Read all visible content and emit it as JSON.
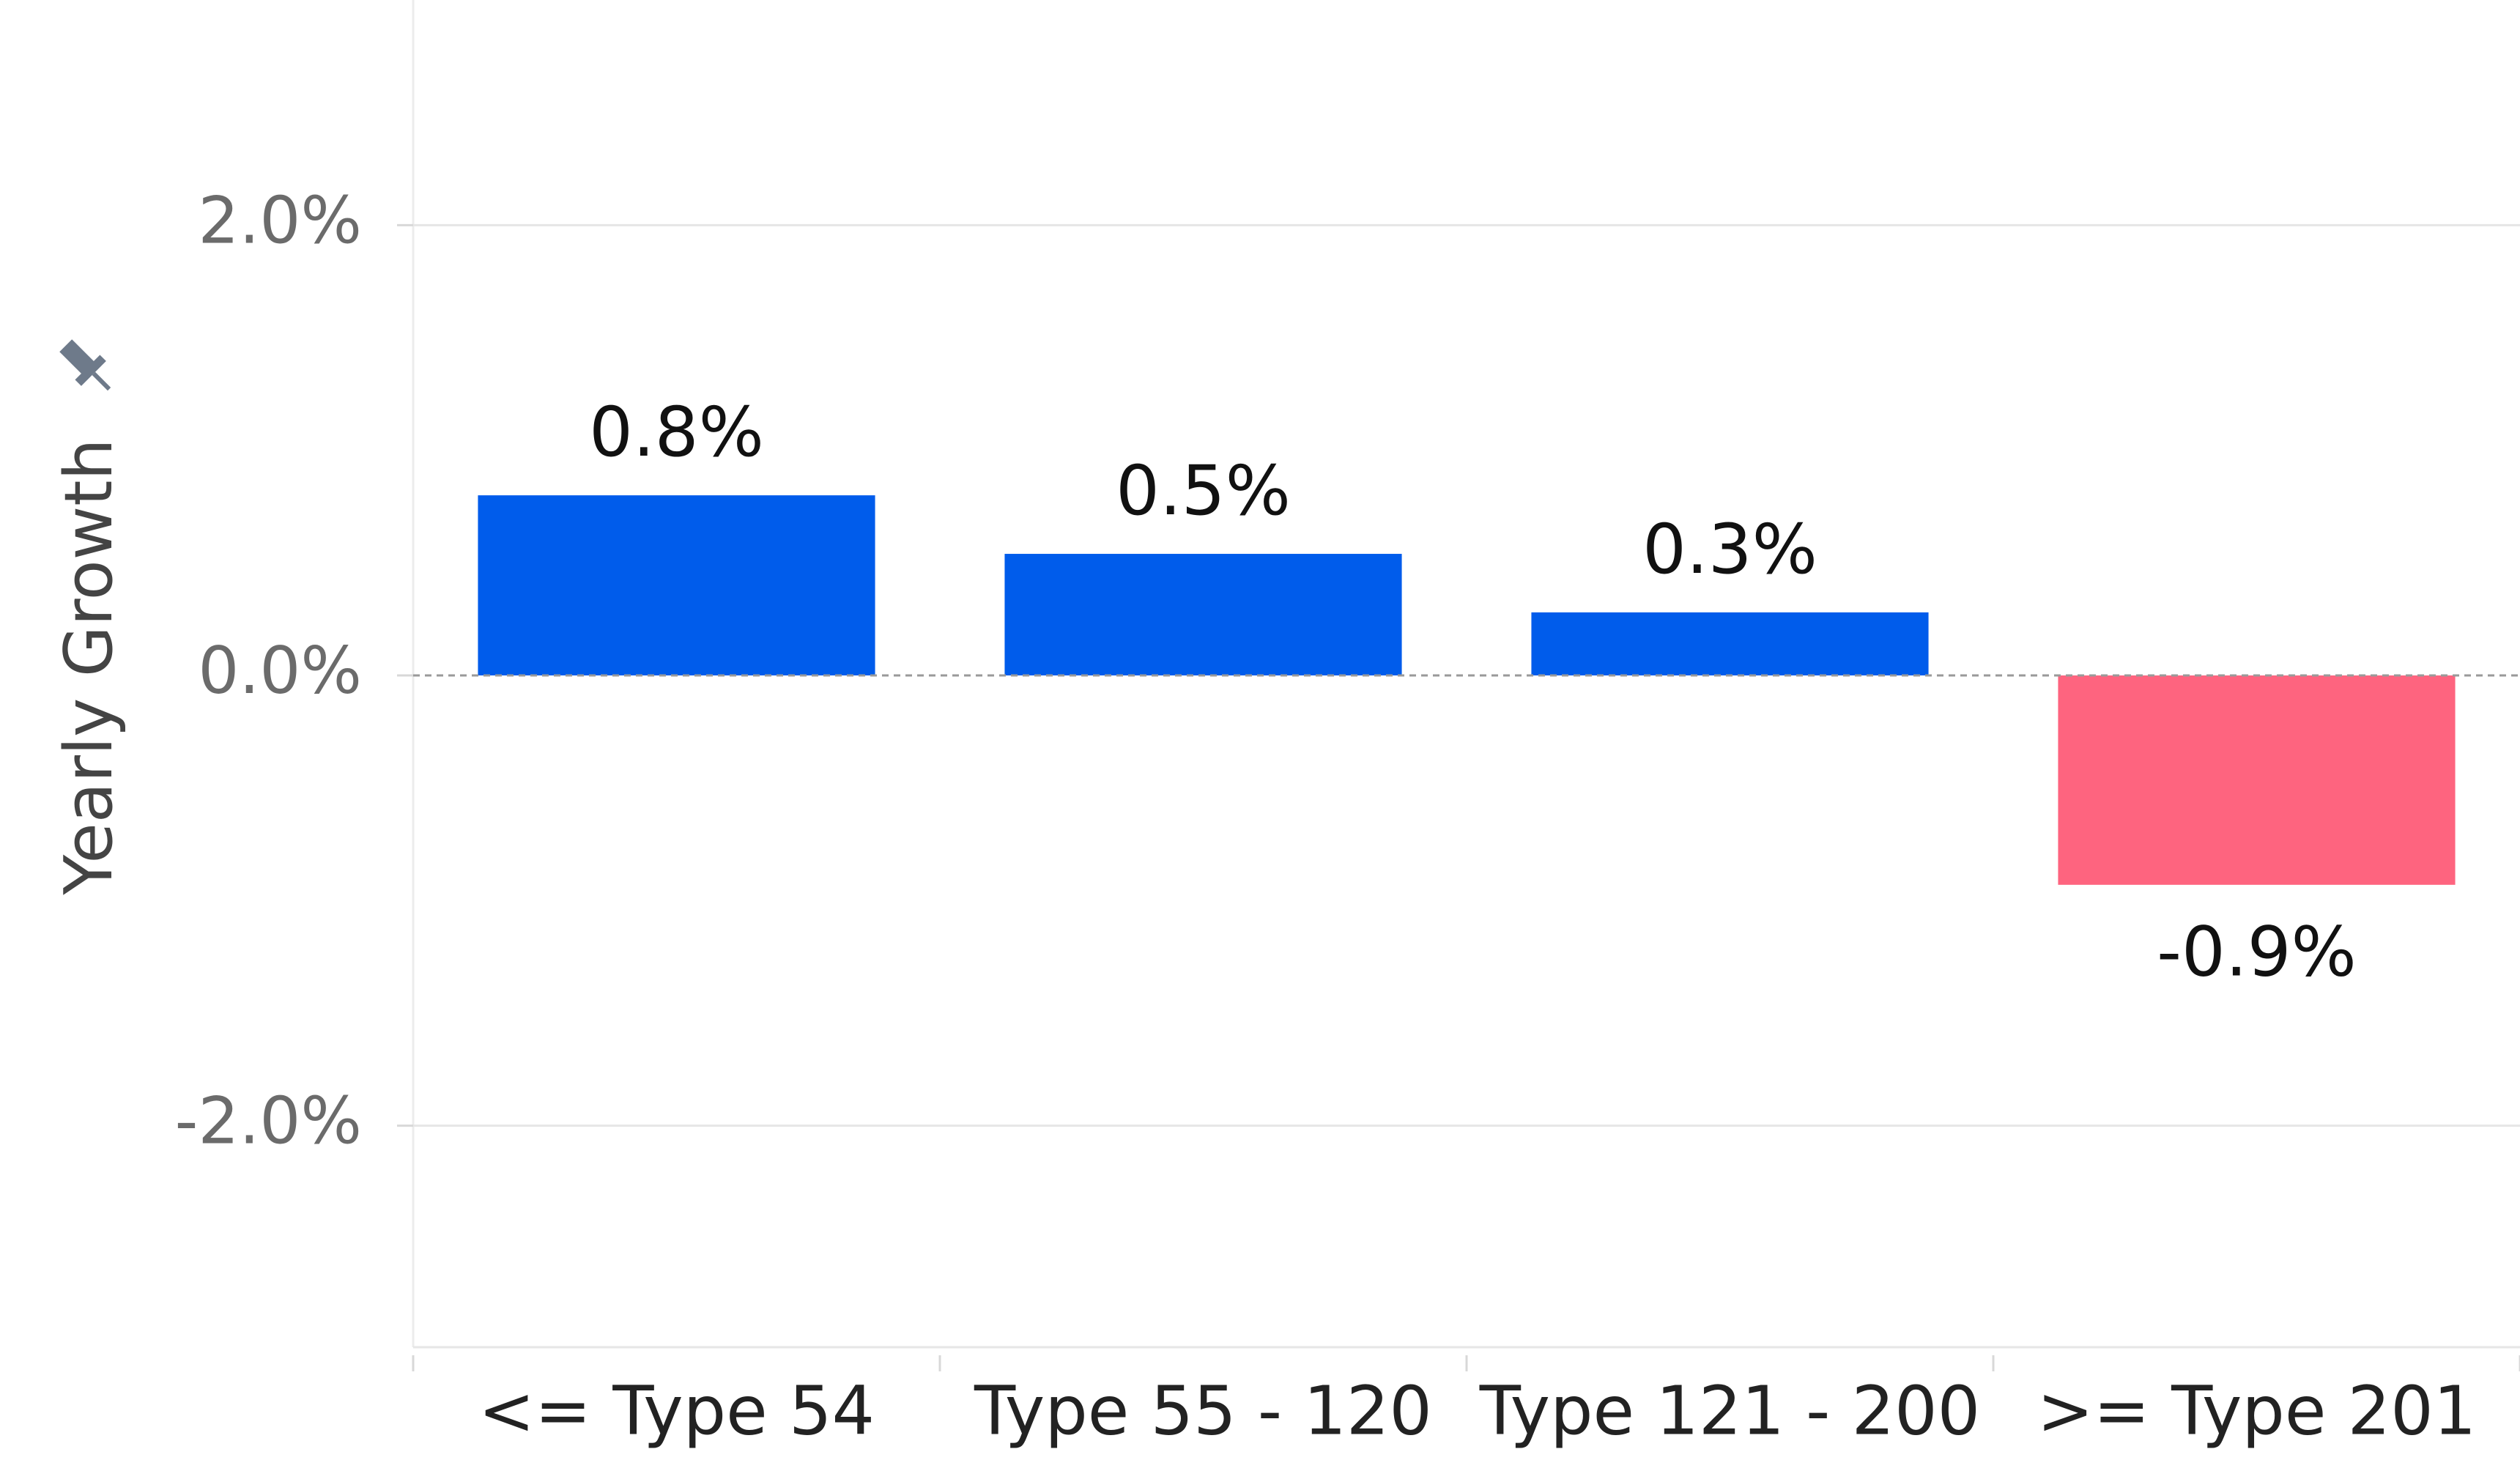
{
  "chart_data": {
    "type": "bar",
    "y_label": "Yearly Growth",
    "categories": [
      "<= Type 54",
      "Type 55 - 120",
      "Type 121 - 200",
      ">= Type 201"
    ],
    "values": [
      0.8,
      0.54,
      0.28,
      -0.93
    ],
    "value_labels": [
      "0.8%",
      "0.5%",
      "0.3%",
      "-0.9%"
    ],
    "colors": [
      "#005ceb",
      "#005ceb",
      "#005ceb",
      "#fe647f"
    ],
    "ylim": [
      -3,
      3
    ],
    "yticks": [
      {
        "value": 2,
        "label": "2.0%"
      },
      {
        "value": 0,
        "label": "0.0%"
      },
      {
        "value": -2,
        "label": "-2.0%"
      }
    ],
    "grid": true
  }
}
